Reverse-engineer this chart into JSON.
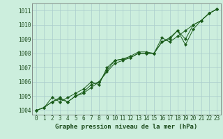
{
  "title": "Graphe pression niveau de la mer (hPa)",
  "bg_color": "#cceedd",
  "grid_color": "#aacccc",
  "line_color": "#1a5c1a",
  "xlim": [
    -0.5,
    23.5
  ],
  "ylim": [
    1003.7,
    1011.5
  ],
  "yticks": [
    1004,
    1005,
    1006,
    1007,
    1008,
    1009,
    1010,
    1011
  ],
  "xticks": [
    0,
    1,
    2,
    3,
    4,
    5,
    6,
    7,
    8,
    9,
    10,
    11,
    12,
    13,
    14,
    15,
    16,
    17,
    18,
    19,
    20,
    21,
    22,
    23
  ],
  "series1": [
    1004.0,
    1004.2,
    1004.6,
    1004.8,
    1004.6,
    1005.0,
    1005.3,
    1005.8,
    1006.0,
    1006.7,
    1007.3,
    1007.5,
    1007.7,
    1008.0,
    1008.0,
    1008.0,
    1008.8,
    1009.0,
    1009.6,
    1009.0,
    1010.0,
    1010.3,
    1010.8,
    1011.1
  ],
  "series2": [
    1004.0,
    1004.2,
    1004.6,
    1004.9,
    1004.6,
    1005.0,
    1005.2,
    1005.6,
    1006.0,
    1006.8,
    1007.5,
    1007.6,
    1007.7,
    1008.0,
    1008.0,
    1008.0,
    1008.8,
    1009.1,
    1009.6,
    1008.6,
    1009.7,
    1010.3,
    1010.8,
    1011.1
  ],
  "series3": [
    1004.0,
    1004.2,
    1004.9,
    1004.6,
    1004.9,
    1005.2,
    1005.5,
    1006.0,
    1005.8,
    1007.0,
    1007.5,
    1007.6,
    1007.8,
    1008.1,
    1008.1,
    1008.0,
    1009.1,
    1008.8,
    1009.2,
    1009.6,
    1010.0,
    1010.3,
    1010.8,
    1011.1
  ],
  "tick_fontsize": 5.5,
  "label_fontsize": 6.5,
  "lw": 0.7,
  "marker_size": 2.2
}
